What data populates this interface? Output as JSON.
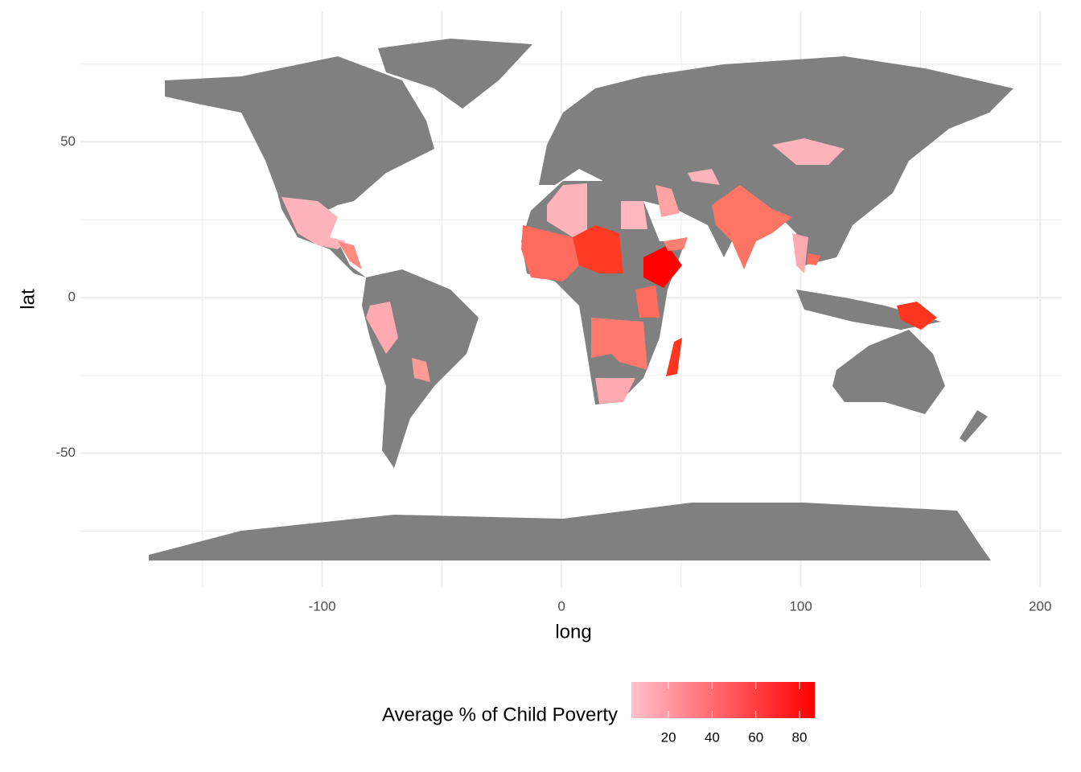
{
  "chart_data": {
    "type": "map",
    "xlabel": "long",
    "ylabel": "lat",
    "xlim": [
      -201,
      209
    ],
    "ylim": [
      -93,
      92
    ],
    "xticks": [
      -100,
      0,
      100,
      200
    ],
    "yticks": [
      -50,
      0,
      50
    ],
    "x_minor_ticks": [
      -150,
      -50,
      50,
      150
    ],
    "y_minor_ticks": [
      -75,
      -25,
      25,
      75
    ],
    "grid": true,
    "land_color": "#808080",
    "legend": {
      "title": "Average % of Child Poverty",
      "position": "bottom",
      "colors": [
        "#ffc0cb",
        "#ff0000"
      ],
      "limits": [
        3,
        87
      ],
      "ticks": [
        20,
        40,
        60,
        80
      ]
    }
  }
}
